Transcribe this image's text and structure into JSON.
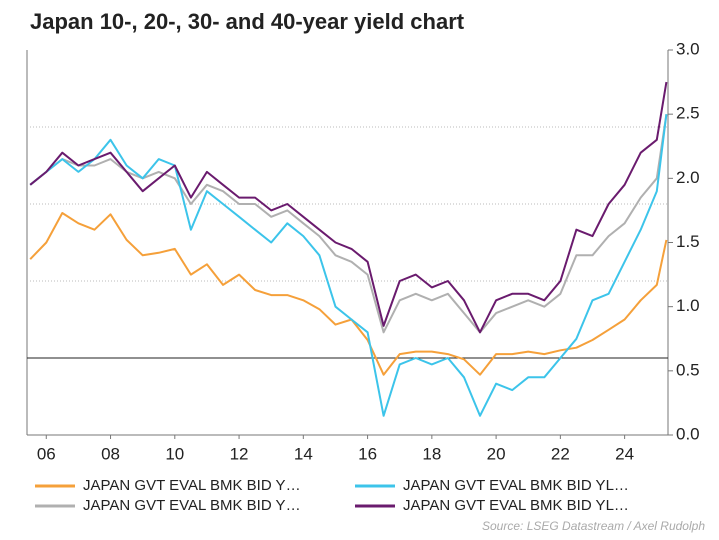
{
  "chart_data": {
    "type": "line",
    "title": "Japan 10-, 20-, 30- and 40-year yield chart",
    "source": "Source: LSEG Datastream / Axel Rudolph",
    "x": [
      2005.5,
      2006,
      2006.5,
      2007,
      2007.5,
      2008,
      2008.5,
      2009,
      2009.5,
      2010,
      2010.5,
      2011,
      2011.5,
      2012,
      2012.5,
      2013,
      2013.5,
      2014,
      2014.5,
      2015,
      2015.5,
      2016,
      2016.5,
      2017,
      2017.5,
      2018,
      2018.5,
      2019,
      2019.5,
      2020,
      2020.5,
      2021,
      2021.5,
      2022,
      2022.5,
      2023,
      2023.5,
      2024,
      2024.5,
      2025,
      2025.3
    ],
    "series": [
      {
        "name": "JAPAN GVT EVAL BMK BID Y…",
        "color": "#f5a03a",
        "values": [
          1.37,
          1.5,
          1.73,
          1.65,
          1.6,
          1.72,
          1.52,
          1.4,
          1.42,
          1.45,
          1.25,
          1.33,
          1.17,
          1.25,
          1.13,
          1.09,
          1.09,
          1.05,
          0.98,
          0.86,
          0.9,
          0.74,
          0.47,
          0.63,
          0.65,
          0.65,
          0.63,
          0.59,
          0.47,
          0.63,
          0.63,
          0.65,
          0.63,
          0.66,
          0.68,
          0.74,
          0.82,
          0.9,
          1.05,
          1.17,
          1.52
        ]
      },
      {
        "name": "JAPAN GVT EVAL BMK BID YL…",
        "color": "#3cc4ea",
        "values": [
          1.95,
          2.05,
          2.15,
          2.05,
          2.15,
          2.3,
          2.1,
          2.0,
          2.15,
          2.1,
          1.6,
          1.9,
          1.8,
          1.7,
          1.6,
          1.5,
          1.65,
          1.55,
          1.4,
          1.0,
          0.9,
          0.8,
          0.15,
          0.55,
          0.6,
          0.55,
          0.6,
          0.45,
          0.15,
          0.4,
          0.35,
          0.45,
          0.45,
          0.6,
          0.75,
          1.05,
          1.1,
          1.35,
          1.6,
          1.9,
          2.5
        ]
      },
      {
        "name": "JAPAN GVT EVAL BMK BID Y…",
        "color": "#b0b0b0",
        "values": [
          1.95,
          2.05,
          2.15,
          2.1,
          2.1,
          2.15,
          2.05,
          2.0,
          2.05,
          2.0,
          1.8,
          1.95,
          1.9,
          1.8,
          1.8,
          1.7,
          1.75,
          1.65,
          1.55,
          1.4,
          1.35,
          1.25,
          0.8,
          1.05,
          1.1,
          1.05,
          1.1,
          0.95,
          0.8,
          0.95,
          1.0,
          1.05,
          1.0,
          1.1,
          1.4,
          1.4,
          1.55,
          1.65,
          1.85,
          2.0,
          2.5
        ]
      },
      {
        "name": "JAPAN GVT EVAL BMK BID YL…",
        "color": "#6a1b6e",
        "values": [
          1.95,
          2.05,
          2.2,
          2.1,
          2.15,
          2.2,
          2.05,
          1.9,
          2.0,
          2.1,
          1.85,
          2.05,
          1.95,
          1.85,
          1.85,
          1.75,
          1.8,
          1.7,
          1.6,
          1.5,
          1.45,
          1.35,
          0.85,
          1.2,
          1.25,
          1.15,
          1.2,
          1.05,
          0.8,
          1.05,
          1.1,
          1.1,
          1.05,
          1.2,
          1.6,
          1.55,
          1.8,
          1.95,
          2.2,
          2.3,
          2.75
        ]
      }
    ],
    "xlim": [
      2005.4,
      2025.35
    ],
    "xticks": [
      {
        "value": 2006,
        "label": "06"
      },
      {
        "value": 2008,
        "label": "08"
      },
      {
        "value": 2010,
        "label": "10"
      },
      {
        "value": 2012,
        "label": "12"
      },
      {
        "value": 2014,
        "label": "14"
      },
      {
        "value": 2016,
        "label": "16"
      },
      {
        "value": 2018,
        "label": "18"
      },
      {
        "value": 2020,
        "label": "20"
      },
      {
        "value": 2022,
        "label": "22"
      },
      {
        "value": 2024,
        "label": "24"
      }
    ],
    "ylim": [
      0,
      3
    ],
    "yticks": [
      {
        "value": 0,
        "label": "0.0"
      },
      0.5,
      {
        "value": 1,
        "label": "1.0"
      },
      1.5,
      {
        "value": 2,
        "label": "2.0"
      },
      2.5,
      {
        "value": 3,
        "label": "3.0"
      }
    ],
    "grid": [
      1.2,
      1.8,
      2.4
    ],
    "hline": 0.6
  }
}
